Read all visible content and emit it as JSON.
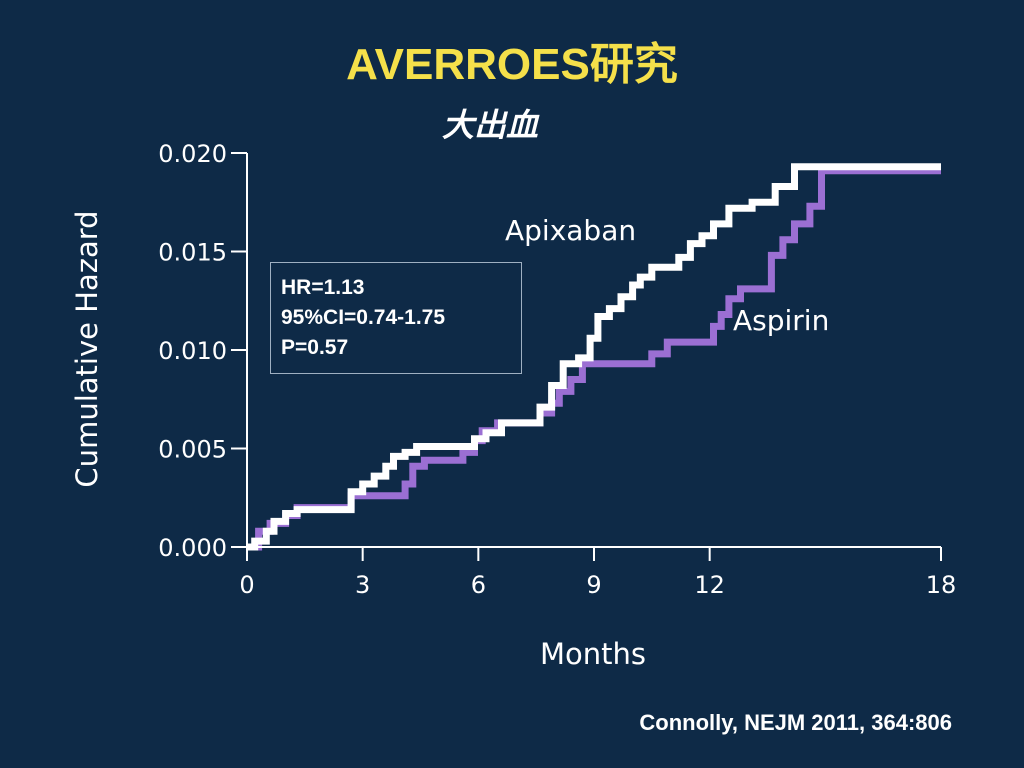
{
  "slide": {
    "title": "AVERROES研究",
    "subtitle": "大出血",
    "citation": "Connolly, NEJM 2011, 364:806"
  },
  "stats": {
    "hr": "HR=1.13",
    "ci": "95%CI=0.74-1.75",
    "p": "P=0.57"
  },
  "colors": {
    "background": "#0e2a47",
    "title": "#f5e04a",
    "apixaban": "#ffffff",
    "aspirin": "#9b6fd3"
  },
  "chart_data": {
    "type": "line",
    "xlabel": "Months",
    "ylabel": "Cumulative Hazard",
    "xlim": [
      0,
      18
    ],
    "ylim": [
      0,
      0.02
    ],
    "x_ticks": [
      0,
      3,
      6,
      9,
      12,
      18
    ],
    "y_ticks": [
      0.0,
      0.005,
      0.01,
      0.015,
      0.02
    ],
    "x_tick_labels": [
      "0",
      "3",
      "6",
      "9",
      "12",
      "18"
    ],
    "y_tick_labels": [
      "0.000",
      "0.005",
      "0.010",
      "0.015",
      "0.020"
    ],
    "grid": false,
    "legend": "inline labels",
    "series": [
      {
        "name": "Apixaban",
        "color": "#ffffff",
        "step": true,
        "points": [
          [
            0,
            0
          ],
          [
            0.2,
            0.0003
          ],
          [
            0.5,
            0.0008
          ],
          [
            0.7,
            0.0013
          ],
          [
            1.0,
            0.0017
          ],
          [
            1.3,
            0.0019
          ],
          [
            2.4,
            0.0019
          ],
          [
            2.7,
            0.0028
          ],
          [
            3.0,
            0.0032
          ],
          [
            3.3,
            0.0036
          ],
          [
            3.6,
            0.0041
          ],
          [
            3.8,
            0.0046
          ],
          [
            4.1,
            0.0048
          ],
          [
            4.4,
            0.0051
          ],
          [
            5.6,
            0.0051
          ],
          [
            5.9,
            0.0055
          ],
          [
            6.2,
            0.0058
          ],
          [
            6.6,
            0.0063
          ],
          [
            7.4,
            0.0063
          ],
          [
            7.6,
            0.0071
          ],
          [
            7.9,
            0.0082
          ],
          [
            8.2,
            0.0093
          ],
          [
            8.6,
            0.0096
          ],
          [
            8.9,
            0.0106
          ],
          [
            9.1,
            0.0117
          ],
          [
            9.4,
            0.0121
          ],
          [
            9.7,
            0.0127
          ],
          [
            10.0,
            0.0133
          ],
          [
            10.2,
            0.0137
          ],
          [
            10.5,
            0.0142
          ],
          [
            11.2,
            0.0147
          ],
          [
            11.5,
            0.0154
          ],
          [
            11.8,
            0.0158
          ],
          [
            12.1,
            0.0164
          ],
          [
            12.5,
            0.0172
          ],
          [
            13.1,
            0.0175
          ],
          [
            13.7,
            0.0183
          ],
          [
            14.2,
            0.0193
          ],
          [
            18,
            0.0193
          ]
        ]
      },
      {
        "name": "Aspirin",
        "color": "#9b6fd3",
        "step": true,
        "points": [
          [
            0,
            0
          ],
          [
            0.3,
            0.0008
          ],
          [
            0.6,
            0.0012
          ],
          [
            1.0,
            0.0016
          ],
          [
            1.3,
            0.002
          ],
          [
            2.4,
            0.002
          ],
          [
            2.7,
            0.0026
          ],
          [
            3.9,
            0.0026
          ],
          [
            4.1,
            0.0032
          ],
          [
            4.3,
            0.0041
          ],
          [
            4.6,
            0.0044
          ],
          [
            5.3,
            0.0044
          ],
          [
            5.6,
            0.0048
          ],
          [
            5.9,
            0.0054
          ],
          [
            6.1,
            0.0059
          ],
          [
            6.5,
            0.0063
          ],
          [
            7.3,
            0.0063
          ],
          [
            7.6,
            0.0068
          ],
          [
            7.9,
            0.0073
          ],
          [
            8.1,
            0.0079
          ],
          [
            8.4,
            0.0085
          ],
          [
            8.7,
            0.0093
          ],
          [
            10.1,
            0.0093
          ],
          [
            10.5,
            0.0098
          ],
          [
            10.9,
            0.0104
          ],
          [
            11.8,
            0.0104
          ],
          [
            12.1,
            0.0112
          ],
          [
            12.3,
            0.0118
          ],
          [
            12.5,
            0.0126
          ],
          [
            12.8,
            0.0131
          ],
          [
            13.3,
            0.0131
          ],
          [
            13.6,
            0.0148
          ],
          [
            13.9,
            0.0156
          ],
          [
            14.2,
            0.0164
          ],
          [
            14.6,
            0.0173
          ],
          [
            14.9,
            0.0191
          ],
          [
            18,
            0.0191
          ]
        ]
      }
    ]
  }
}
